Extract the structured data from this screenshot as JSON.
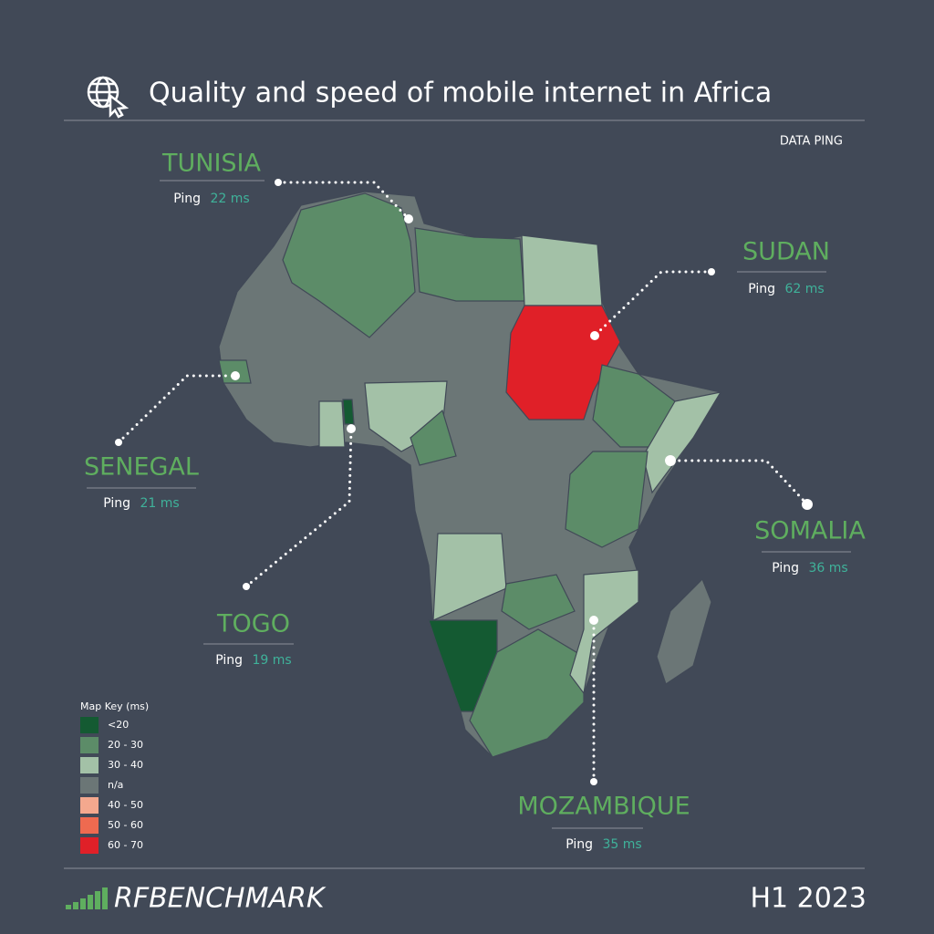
{
  "header": {
    "title": "Quality and speed of mobile internet in Africa",
    "subtitle": "DATA PING"
  },
  "callouts": [
    {
      "country": "TUNISIA",
      "label": "Ping",
      "value": "22 ms"
    },
    {
      "country": "SUDAN",
      "label": "Ping",
      "value": "62 ms"
    },
    {
      "country": "SENEGAL",
      "label": "Ping",
      "value": "21 ms"
    },
    {
      "country": "TOGO",
      "label": "Ping",
      "value": "19 ms"
    },
    {
      "country": "SOMALIA",
      "label": "Ping",
      "value": "36 ms"
    },
    {
      "country": "MOZAMBIQUE",
      "label": "Ping",
      "value": "35 ms"
    }
  ],
  "legend": {
    "title": "Map Key (ms)",
    "items": [
      {
        "label": "<20",
        "color": "#145a32"
      },
      {
        "label": "20 - 30",
        "color": "#5c8c68"
      },
      {
        "label": "30 - 40",
        "color": "#a3c1a7"
      },
      {
        "label": "n/a",
        "color": "#6b7676"
      },
      {
        "label": "40 - 50",
        "color": "#f4a88e"
      },
      {
        "label": "50 - 60",
        "color": "#ee6a50"
      },
      {
        "label": "60 - 70",
        "color": "#e02028"
      }
    ]
  },
  "footer": {
    "brand": "RFBENCHMARK",
    "period": "H1 2023"
  }
}
